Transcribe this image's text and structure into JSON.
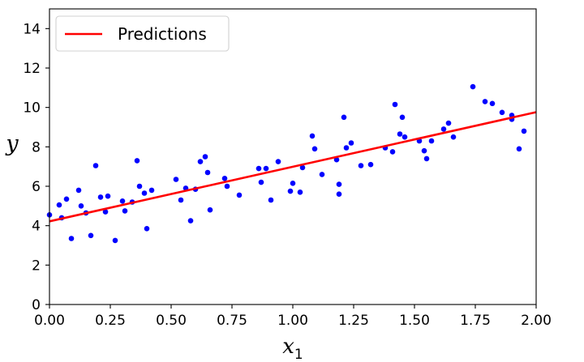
{
  "chart_data": {
    "type": "scatter",
    "title": "",
    "xlabel": "x",
    "xlabel_subscript": "1",
    "ylabel": "y",
    "xlim": [
      0,
      2
    ],
    "ylim": [
      0,
      15
    ],
    "x_ticks": [
      0,
      0.25,
      0.5,
      0.75,
      1.0,
      1.25,
      1.5,
      1.75,
      2.0
    ],
    "x_tick_labels": [
      "0.00",
      "0.25",
      "0.50",
      "0.75",
      "1.00",
      "1.25",
      "1.50",
      "1.75",
      "2.00"
    ],
    "y_ticks": [
      0,
      2,
      4,
      6,
      8,
      10,
      12,
      14
    ],
    "y_tick_labels": [
      "0",
      "2",
      "4",
      "6",
      "8",
      "10",
      "12",
      "14"
    ],
    "grid": false,
    "legend_placement": "top-left",
    "series": [
      {
        "name": "Predictions",
        "kind": "line",
        "color": "#ff0000",
        "x": [
          0,
          2
        ],
        "y": [
          4.22,
          9.76
        ]
      },
      {
        "name": "",
        "kind": "scatter",
        "color": "#0000ff",
        "x": [
          0.0,
          0.04,
          0.05,
          0.07,
          0.09,
          0.12,
          0.13,
          0.15,
          0.17,
          0.19,
          0.21,
          0.23,
          0.24,
          0.27,
          0.3,
          0.31,
          0.34,
          0.36,
          0.37,
          0.39,
          0.4,
          0.42,
          0.52,
          0.54,
          0.56,
          0.58,
          0.6,
          0.62,
          0.64,
          0.65,
          0.66,
          0.72,
          0.73,
          0.78,
          0.86,
          0.87,
          0.89,
          0.91,
          0.94,
          0.99,
          1.0,
          1.03,
          1.04,
          1.08,
          1.09,
          1.12,
          1.18,
          1.19,
          1.19,
          1.21,
          1.22,
          1.24,
          1.28,
          1.32,
          1.38,
          1.41,
          1.42,
          1.44,
          1.45,
          1.46,
          1.52,
          1.54,
          1.55,
          1.57,
          1.62,
          1.64,
          1.66,
          1.74,
          1.79,
          1.82,
          1.86,
          1.9,
          1.9,
          1.93,
          1.95
        ],
        "y": [
          4.55,
          5.05,
          4.4,
          5.35,
          3.35,
          5.8,
          5.0,
          4.65,
          3.5,
          7.05,
          5.45,
          4.7,
          5.5,
          3.25,
          5.25,
          4.75,
          5.2,
          7.3,
          6.0,
          5.65,
          3.85,
          5.8,
          6.35,
          5.3,
          5.9,
          4.25,
          5.85,
          7.25,
          7.5,
          6.7,
          4.8,
          6.4,
          6.0,
          5.55,
          6.9,
          6.2,
          6.9,
          5.3,
          7.25,
          5.75,
          6.15,
          5.7,
          6.95,
          8.55,
          7.9,
          6.6,
          7.35,
          5.6,
          6.1,
          9.5,
          7.95,
          8.2,
          7.05,
          7.1,
          7.95,
          7.75,
          10.15,
          8.65,
          9.5,
          8.5,
          8.3,
          7.8,
          7.4,
          8.3,
          8.9,
          9.2,
          8.5,
          11.05,
          10.3,
          10.2,
          9.75,
          9.4,
          9.6,
          7.9,
          8.8
        ]
      }
    ]
  }
}
